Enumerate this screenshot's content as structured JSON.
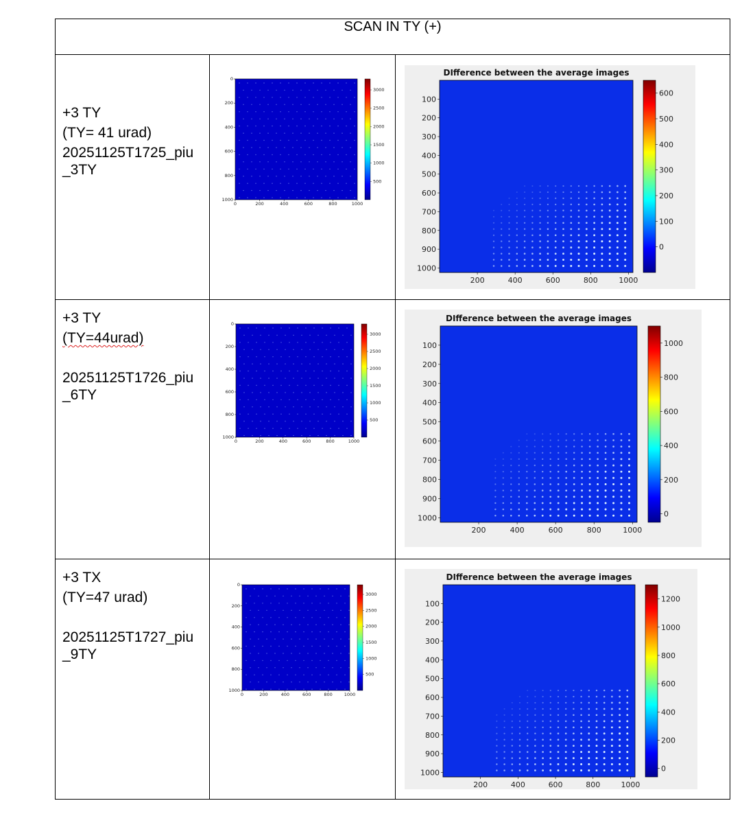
{
  "header": {
    "title": "SCAN IN TY (+)"
  },
  "colors": {
    "background_blue": "#0000c8",
    "field_blue": "#0a2ee8",
    "panel_gray": "#efefef"
  },
  "rows": [
    {
      "label": {
        "l1": "+3 TY",
        "l2": "(TY= 41 urad)",
        "l3": "20251125T1725_piu",
        "l4": "_3TY"
      },
      "raw": {
        "x_ticks": [
          "0",
          "200",
          "400",
          "600",
          "800",
          "1000"
        ],
        "y_ticks": [
          "0",
          "200",
          "400",
          "600",
          "800",
          "1000"
        ],
        "cb_ticks": [
          "3000",
          "2500",
          "2000",
          "1500",
          "1000",
          "500"
        ]
      },
      "diff": {
        "title": "DIfference between the average images",
        "x_ticks": [
          "200",
          "400",
          "600",
          "800",
          "1000"
        ],
        "y_ticks": [
          "100",
          "200",
          "300",
          "400",
          "500",
          "600",
          "700",
          "800",
          "900",
          "1000"
        ],
        "cb_ticks": [
          "600",
          "500",
          "400",
          "300",
          "200",
          "100",
          "0"
        ]
      }
    },
    {
      "label": {
        "l1": "+3 TY",
        "l2": "(TY=44urad)",
        "l3": "20251125T1726_piu",
        "l4": "_6TY"
      },
      "raw": {
        "x_ticks": [
          "0",
          "200",
          "400",
          "600",
          "800",
          "1000"
        ],
        "y_ticks": [
          "0",
          "200",
          "400",
          "600",
          "800",
          "1000"
        ],
        "cb_ticks": [
          "3000",
          "2500",
          "2000",
          "1500",
          "1000",
          "500"
        ]
      },
      "diff": {
        "title": "DIfference between the average images",
        "x_ticks": [
          "200",
          "400",
          "600",
          "800",
          "1000"
        ],
        "y_ticks": [
          "100",
          "200",
          "300",
          "400",
          "500",
          "600",
          "700",
          "800",
          "900",
          "1000"
        ],
        "cb_ticks": [
          "1000",
          "800",
          "600",
          "400",
          "200",
          "0"
        ]
      }
    },
    {
      "label": {
        "l1": "+3 TX",
        "l2": "(TY=47 urad)",
        "l3": "20251125T1727_piu",
        "l4": "_9TY"
      },
      "raw": {
        "x_ticks": [
          "0",
          "200",
          "400",
          "600",
          "800",
          "1000"
        ],
        "y_ticks": [
          "0",
          "200",
          "400",
          "600",
          "800",
          "1000"
        ],
        "cb_ticks": [
          "3000",
          "2500",
          "2000",
          "1500",
          "1000",
          "500"
        ]
      },
      "diff": {
        "title": "DIfference between the average images",
        "x_ticks": [
          "200",
          "400",
          "600",
          "800",
          "1000"
        ],
        "y_ticks": [
          "100",
          "200",
          "300",
          "400",
          "500",
          "600",
          "700",
          "800",
          "900",
          "1000"
        ],
        "cb_ticks": [
          "1200",
          "1000",
          "800",
          "600",
          "400",
          "200",
          "0"
        ]
      }
    }
  ]
}
